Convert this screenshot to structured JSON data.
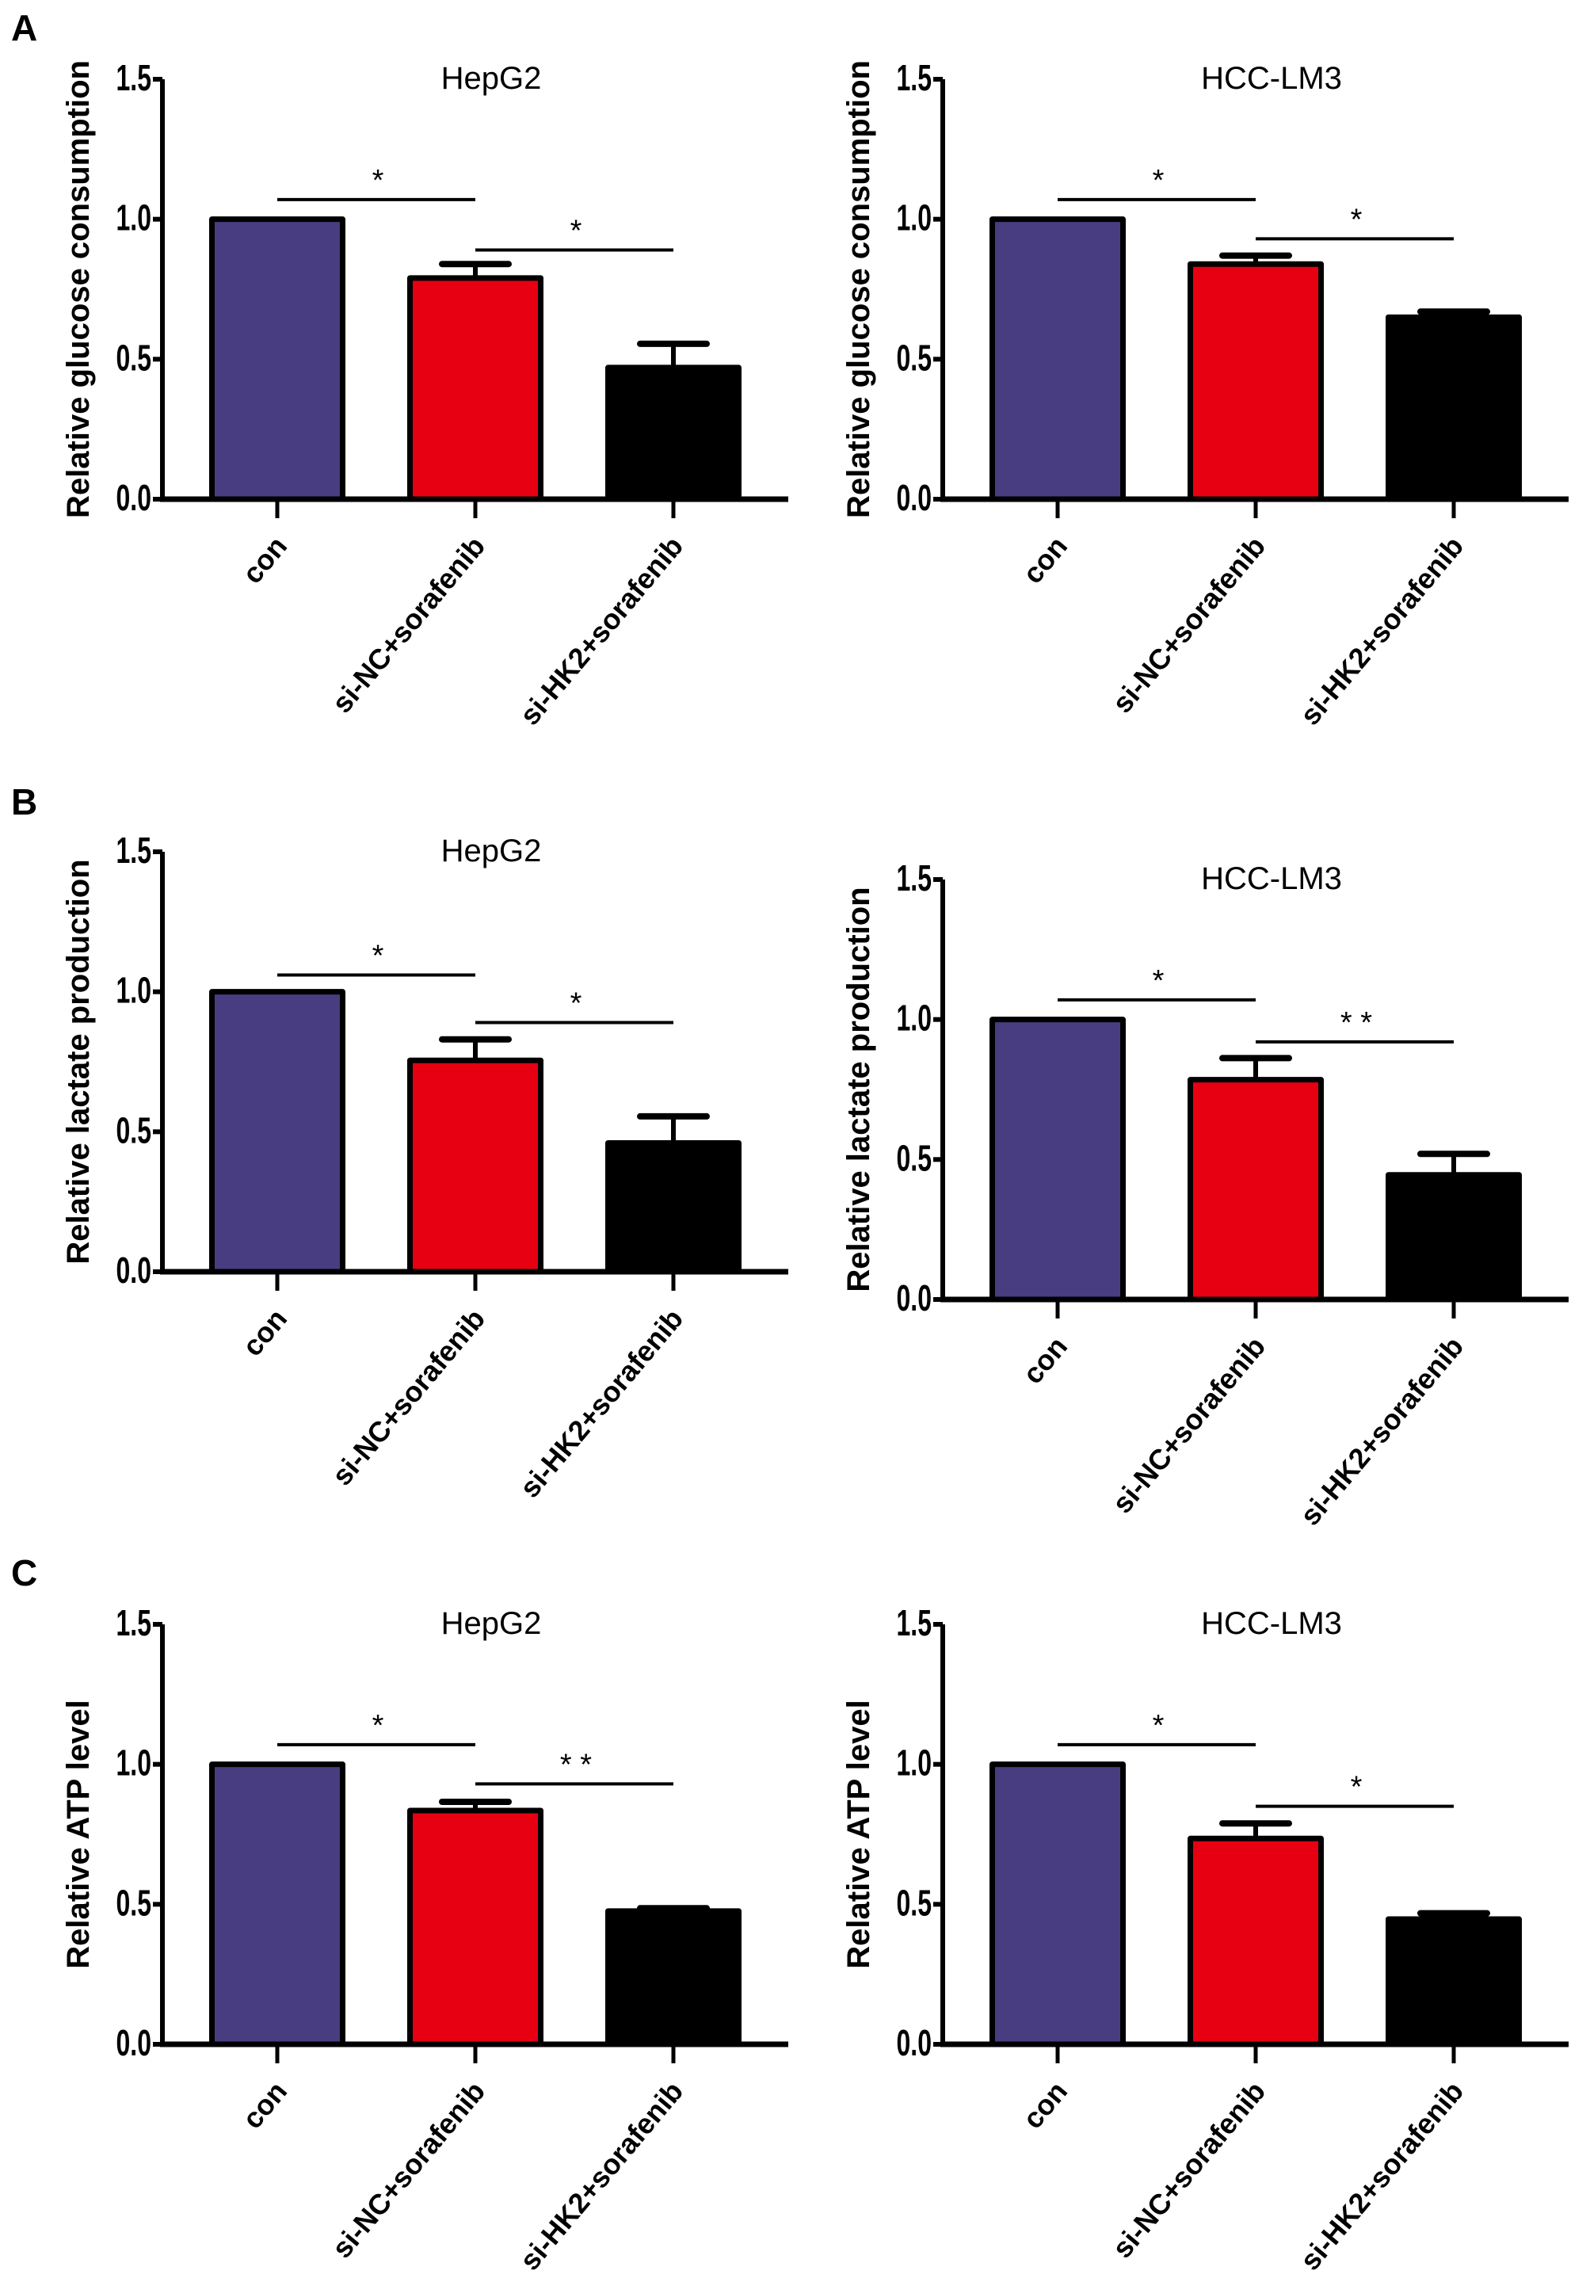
{
  "figure": {
    "panel_letters": [
      "A",
      "B",
      "C"
    ],
    "colors": {
      "con": "#483d80",
      "si-NC+sorafenib": "#e60012",
      "si-HK2+sorafenib": "#000000",
      "outline": "#000000"
    }
  },
  "chart_data": [
    {
      "type": "bar",
      "panel": "A",
      "title": "HepG2",
      "xlabel": "",
      "ylabel": "Relative glucose consumption",
      "categories": [
        "con",
        "si-NC+sorafenib",
        "si-HK2+sorafenib"
      ],
      "values": [
        1.0,
        0.79,
        0.47
      ],
      "errors": [
        0.0,
        0.05,
        0.085
      ],
      "ylim": [
        0,
        1.5
      ],
      "yticks": [
        "0.0",
        "0.5",
        "1.0",
        "1.5"
      ],
      "significance": [
        {
          "from": 0,
          "to": 1,
          "label": "*",
          "level": 1.07
        },
        {
          "from": 1,
          "to": 2,
          "label": "*",
          "level": 0.89
        }
      ],
      "grid": false
    },
    {
      "type": "bar",
      "panel": "A",
      "title": "HCC-LM3",
      "xlabel": "",
      "ylabel": "Relative glucose consumption",
      "categories": [
        "con",
        "si-NC+sorafenib",
        "si-HK2+sorafenib"
      ],
      "values": [
        1.0,
        0.84,
        0.65
      ],
      "errors": [
        0.0,
        0.03,
        0.02
      ],
      "ylim": [
        0,
        1.5
      ],
      "yticks": [
        "0.0",
        "0.5",
        "1.0",
        "1.5"
      ],
      "significance": [
        {
          "from": 0,
          "to": 1,
          "label": "*",
          "level": 1.07
        },
        {
          "from": 1,
          "to": 2,
          "label": "*",
          "level": 0.93
        }
      ],
      "grid": false
    },
    {
      "type": "bar",
      "panel": "B",
      "title": "HepG2",
      "xlabel": "",
      "ylabel": "Relative lactate production",
      "categories": [
        "con",
        "si-NC+sorafenib",
        "si-HK2+sorafenib"
      ],
      "values": [
        1.0,
        0.755,
        0.46
      ],
      "errors": [
        0.0,
        0.075,
        0.095
      ],
      "ylim": [
        0,
        1.5
      ],
      "yticks": [
        "0.0",
        "0.5",
        "1.0",
        "1.5"
      ],
      "significance": [
        {
          "from": 0,
          "to": 1,
          "label": "*",
          "level": 1.06
        },
        {
          "from": 1,
          "to": 2,
          "label": "*",
          "level": 0.89
        }
      ],
      "grid": false
    },
    {
      "type": "bar",
      "panel": "B",
      "title": "HCC-LM3",
      "xlabel": "",
      "ylabel": "Relative lactate production",
      "categories": [
        "con",
        "si-NC+sorafenib",
        "si-HK2+sorafenib"
      ],
      "values": [
        1.0,
        0.785,
        0.445
      ],
      "errors": [
        0.0,
        0.077,
        0.075
      ],
      "ylim": [
        0,
        1.5
      ],
      "yticks": [
        "0.0",
        "0.5",
        "1.0",
        "1.5"
      ],
      "significance": [
        {
          "from": 0,
          "to": 1,
          "label": "*",
          "level": 1.07
        },
        {
          "from": 1,
          "to": 2,
          "label": "* *",
          "level": 0.92
        }
      ],
      "grid": false
    },
    {
      "type": "bar",
      "panel": "C",
      "title": "HepG2",
      "xlabel": "",
      "ylabel": "Relative ATP level",
      "categories": [
        "con",
        "si-NC+sorafenib",
        "si-HK2+sorafenib"
      ],
      "values": [
        1.0,
        0.835,
        0.476
      ],
      "errors": [
        0.0,
        0.031,
        0.01
      ],
      "ylim": [
        0,
        1.5
      ],
      "yticks": [
        "0.0",
        "0.5",
        "1.0",
        "1.5"
      ],
      "significance": [
        {
          "from": 0,
          "to": 1,
          "label": "*",
          "level": 1.07
        },
        {
          "from": 1,
          "to": 2,
          "label": "* *",
          "level": 0.93
        }
      ],
      "grid": false
    },
    {
      "type": "bar",
      "panel": "C",
      "title": "HCC-LM3",
      "xlabel": "",
      "ylabel": "Relative ATP level",
      "categories": [
        "con",
        "si-NC+sorafenib",
        "si-HK2+sorafenib"
      ],
      "values": [
        1.0,
        0.735,
        0.447
      ],
      "errors": [
        0.0,
        0.054,
        0.021
      ],
      "ylim": [
        0,
        1.5
      ],
      "yticks": [
        "0.0",
        "0.5",
        "1.0",
        "1.5"
      ],
      "significance": [
        {
          "from": 0,
          "to": 1,
          "label": "*",
          "level": 1.07
        },
        {
          "from": 1,
          "to": 2,
          "label": "*",
          "level": 0.85
        }
      ],
      "grid": false
    }
  ]
}
